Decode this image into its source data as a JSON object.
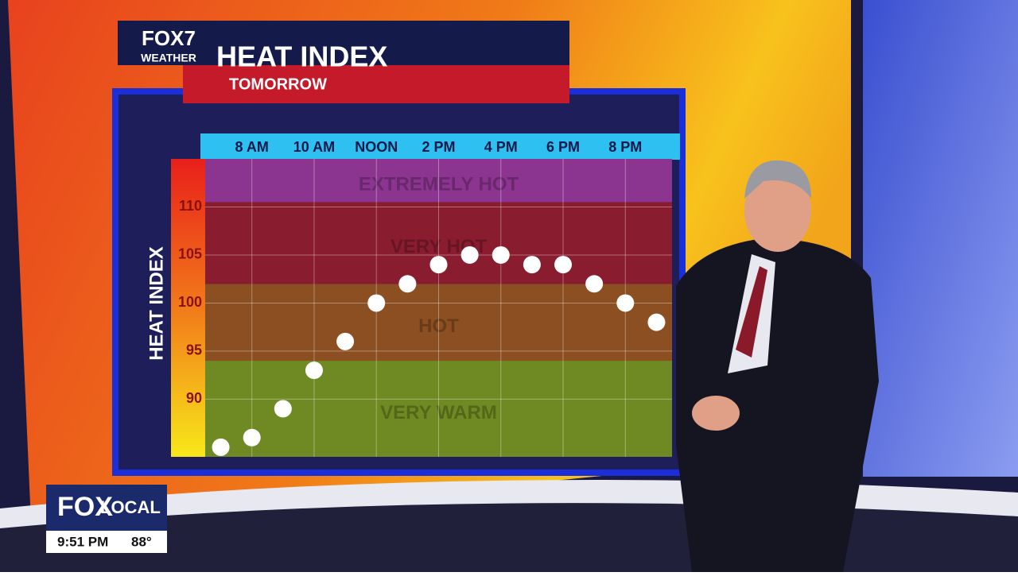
{
  "logo": {
    "brand": "FOX7",
    "sub": "WEATHER"
  },
  "chart_data": {
    "type": "dot",
    "title": "HEAT INDEX",
    "subtitle": "TOMORROW",
    "y_label": "HEAT INDEX",
    "categories": [
      null,
      "8 AM",
      null,
      "10 AM",
      null,
      "NOON",
      null,
      "2 PM",
      null,
      "4 PM",
      null,
      "6 PM",
      null,
      "8 PM",
      null
    ],
    "values": [
      85,
      86,
      89,
      93,
      96,
      100,
      102,
      104,
      105,
      105,
      104,
      104,
      102,
      100,
      98
    ],
    "color": "#ffffff",
    "ylim": [
      84,
      115
    ],
    "yticks": [
      90,
      95,
      100,
      105,
      110
    ],
    "grid": true,
    "bands": [
      {
        "name": "VERY WARM",
        "from": 84,
        "to": 94,
        "color": "#6f8a22"
      },
      {
        "name": "HOT",
        "from": 94,
        "to": 102,
        "color": "#8c4f22"
      },
      {
        "name": "VERY HOT",
        "from": 102,
        "to": 110.5,
        "color": "#8a1c30"
      },
      {
        "name": "EXTREMELY HOT",
        "from": 110.5,
        "to": 115,
        "color": "#8c3590"
      }
    ]
  },
  "bug": {
    "brand": "FOX",
    "sub": "LOCAL",
    "time": "9:51 PM",
    "temp": "88°"
  }
}
